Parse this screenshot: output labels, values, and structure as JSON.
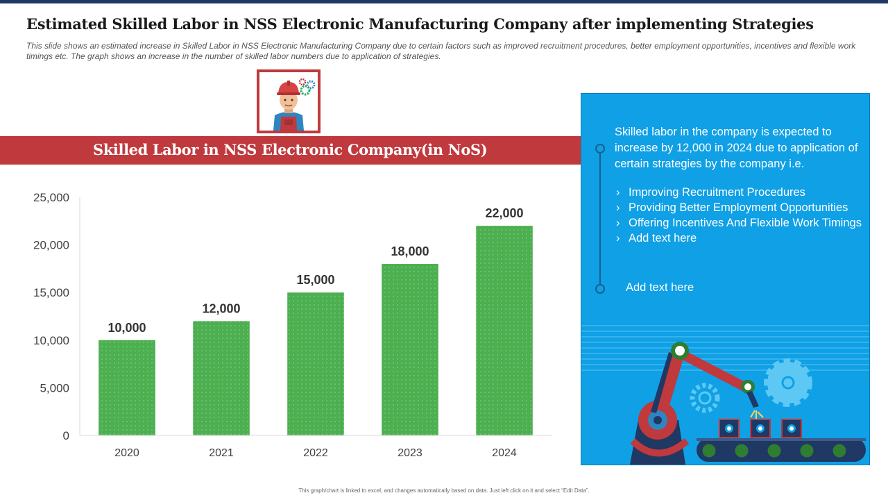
{
  "title": "Estimated Skilled Labor in NSS Electronic Manufacturing Company after implementing Strategies",
  "subtitle": "This slide shows an estimated increase in Skilled Labor in NSS Electronic Manufacturing Company  due to certain factors such as improved recruitment procedures,  better employment opportunities, incentives and flexible work timings etc. The graph  shows an increase in the number of skilled labor numbers due  to application of strategies.",
  "banner_title": "Skilled Labor in NSS Electronic Company(in NoS)",
  "colors": {
    "accent_red": "#c0393d",
    "bar_green": "#4caf50",
    "panel_blue": "#0fa0e6",
    "top_strip": "#1f3864"
  },
  "icons": {
    "worker": "worker-icon",
    "robot_scene": "robot-arm-icon"
  },
  "chart_data": {
    "type": "bar",
    "title": "Skilled Labor in NSS Electronic Company(in NoS)",
    "xlabel": "",
    "ylabel": "",
    "categories": [
      "2020",
      "2021",
      "2022",
      "2023",
      "2024"
    ],
    "values": [
      10000,
      12000,
      15000,
      18000,
      22000
    ],
    "data_labels": [
      "10,000",
      "12,000",
      "15,000",
      "18,000",
      "22,000"
    ],
    "yticks": [
      0,
      5000,
      10000,
      15000,
      20000,
      25000
    ],
    "ytick_labels": [
      "0",
      "5,000",
      "10,000",
      "15,000",
      "20,000",
      "25,000"
    ],
    "ylim": [
      0,
      25000
    ],
    "grid": false,
    "legend": "none"
  },
  "info_panel": {
    "intro": "Skilled labor in the company is expected to increase by 12,000 in 2024 due to application of certain strategies by the company i.e.",
    "bullets": [
      "Improving Recruitment Procedures",
      "Providing Better Employment Opportunities",
      "Offering Incentives And Flexible Work Timings",
      "Add text here"
    ],
    "extra": "Add text here"
  },
  "footer": "This graph/chart is linked to excel, and changes automatically based on data. Just left click on it and select “Edit Data”."
}
